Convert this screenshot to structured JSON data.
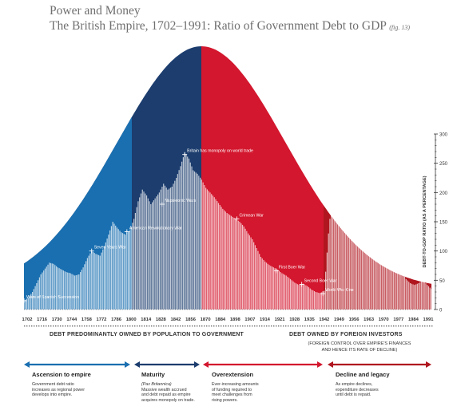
{
  "header": {
    "title": "Power and Money",
    "subtitle": "The British Empire, 1702–1991: Ratio of Government Debt to GDP",
    "fig": "(fig. 13)"
  },
  "chart_data": {
    "type": "bar",
    "ylabel": "DEBT-TO-GDP RATIO (AS A PERCENTAGE)",
    "ylim": [
      0,
      300
    ],
    "yticks": [
      "0",
      "50",
      "100",
      "150",
      "200",
      "250",
      "300"
    ],
    "xlim": [
      1702,
      1991
    ],
    "xticks": [
      "1702",
      "1716",
      "1730",
      "1744",
      "1758",
      "1772",
      "1786",
      "1800",
      "1814",
      "1828",
      "1842",
      "1856",
      "1870",
      "1884",
      "1898",
      "1907",
      "1914",
      "1921",
      "1928",
      "1935",
      "1942",
      "1949",
      "1956",
      "1963",
      "1970",
      "1977",
      "1984",
      "1991"
    ],
    "points": [
      [
        1702,
        15
      ],
      [
        1705,
        20
      ],
      [
        1708,
        30
      ],
      [
        1711,
        45
      ],
      [
        1714,
        60
      ],
      [
        1717,
        70
      ],
      [
        1720,
        80
      ],
      [
        1723,
        78
      ],
      [
        1726,
        72
      ],
      [
        1729,
        68
      ],
      [
        1732,
        64
      ],
      [
        1735,
        62
      ],
      [
        1738,
        58
      ],
      [
        1741,
        60
      ],
      [
        1744,
        72
      ],
      [
        1747,
        88
      ],
      [
        1750,
        100
      ],
      [
        1753,
        95
      ],
      [
        1756,
        92
      ],
      [
        1759,
        108
      ],
      [
        1762,
        128
      ],
      [
        1765,
        150
      ],
      [
        1768,
        140
      ],
      [
        1771,
        132
      ],
      [
        1774,
        128
      ],
      [
        1777,
        135
      ],
      [
        1780,
        155
      ],
      [
        1783,
        185
      ],
      [
        1786,
        205
      ],
      [
        1789,
        195
      ],
      [
        1792,
        180
      ],
      [
        1795,
        190
      ],
      [
        1798,
        200
      ],
      [
        1801,
        215
      ],
      [
        1804,
        205
      ],
      [
        1807,
        210
      ],
      [
        1810,
        225
      ],
      [
        1813,
        245
      ],
      [
        1816,
        268
      ],
      [
        1819,
        258
      ],
      [
        1822,
        238
      ],
      [
        1825,
        232
      ],
      [
        1828,
        222
      ],
      [
        1831,
        208
      ],
      [
        1834,
        200
      ],
      [
        1837,
        192
      ],
      [
        1840,
        182
      ],
      [
        1843,
        172
      ],
      [
        1846,
        165
      ],
      [
        1849,
        160
      ],
      [
        1852,
        155
      ],
      [
        1855,
        150
      ],
      [
        1858,
        142
      ],
      [
        1861,
        130
      ],
      [
        1864,
        120
      ],
      [
        1867,
        105
      ],
      [
        1870,
        90
      ],
      [
        1873,
        82
      ],
      [
        1876,
        76
      ],
      [
        1879,
        72
      ],
      [
        1882,
        68
      ],
      [
        1885,
        62
      ],
      [
        1888,
        58
      ],
      [
        1891,
        52
      ],
      [
        1894,
        46
      ],
      [
        1897,
        42
      ],
      [
        1900,
        44
      ],
      [
        1903,
        40
      ],
      [
        1906,
        34
      ],
      [
        1909,
        30
      ],
      [
        1912,
        28
      ],
      [
        1915,
        32
      ],
      [
        1918,
        130
      ],
      [
        1920,
        180
      ],
      [
        1923,
        190
      ],
      [
        1926,
        170
      ],
      [
        1929,
        175
      ],
      [
        1932,
        205
      ],
      [
        1935,
        175
      ],
      [
        1938,
        158
      ],
      [
        1941,
        210
      ],
      [
        1944,
        255
      ],
      [
        1946,
        280
      ],
      [
        1949,
        225
      ],
      [
        1952,
        180
      ],
      [
        1955,
        150
      ],
      [
        1958,
        120
      ],
      [
        1961,
        105
      ],
      [
        1964,
        90
      ],
      [
        1967,
        80
      ],
      [
        1970,
        65
      ],
      [
        1973,
        52
      ],
      [
        1976,
        45
      ],
      [
        1979,
        42
      ],
      [
        1982,
        45
      ],
      [
        1985,
        50
      ],
      [
        1988,
        42
      ],
      [
        1991,
        35
      ]
    ],
    "annotations": [
      {
        "label": "Wars of Spanish Succession",
        "x": 1702,
        "y": 15
      },
      {
        "label": "Seven Years War",
        "x": 1750,
        "y": 100
      },
      {
        "label": "American Revolutionary War",
        "x": 1775,
        "y": 133
      },
      {
        "label": "Napoleonic Wars",
        "x": 1800,
        "y": 180
      },
      {
        "label": "Britain has monopoly on world trade",
        "x": 1816,
        "y": 265
      },
      {
        "label": "Crimean War",
        "x": 1853,
        "y": 155
      },
      {
        "label": "First Boer War",
        "x": 1881,
        "y": 66
      },
      {
        "label": "Second Boer War",
        "x": 1899,
        "y": 43
      },
      {
        "label": "World War One",
        "x": 1914,
        "y": 27
      },
      {
        "label": "World War Two",
        "x": 1942,
        "y": 168
      },
      {
        "label": "Suez Crisis",
        "x": 1956,
        "y": 118
      }
    ]
  },
  "bands": {
    "left": "DEBT PREDOMINANTLY OWNED BY POPULATION TO GOVERNMENT",
    "right": "DEBT OWNED BY FOREIGN INVESTORS",
    "right_sub1": "(FOREIGN CONTROL OVER EMPIRE'S FINANCES",
    "right_sub2": "AND HENCE ITS RATE OF DECLINE)"
  },
  "phases": [
    {
      "title": "Ascension to empire",
      "italic": "",
      "lines": [
        "Government debt ratio",
        "increases as regional power",
        "develops into empire."
      ]
    },
    {
      "title": "Maturity",
      "italic": "(Pax Britannica)",
      "lines": [
        "Massive wealth accrued",
        "and debt repaid as empire",
        "acquires monopoly on trade."
      ]
    },
    {
      "title": "Overextension",
      "italic": "",
      "lines": [
        "Ever-increasing amounts",
        "of funding required to",
        "meet challenges from",
        "rising powers."
      ]
    },
    {
      "title": "Decline and legacy",
      "italic": "",
      "lines": [
        "As empire declines,",
        "expenditure decreases",
        "until debt is repaid."
      ]
    }
  ],
  "colors": {
    "light_blue": "#1a6fb0",
    "dark_blue": "#1c3d6e",
    "red": "#d3172e",
    "dark_red": "#b0161f",
    "bar": "#ffffff"
  }
}
